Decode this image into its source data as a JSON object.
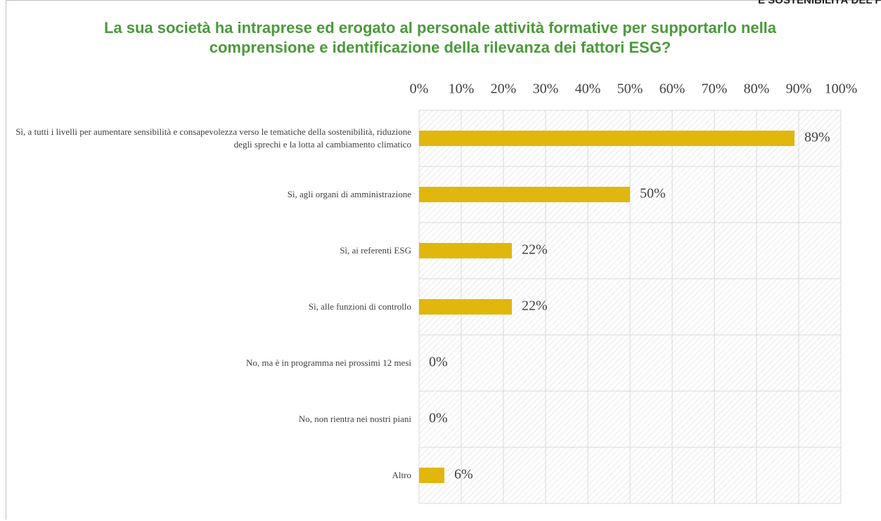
{
  "header": "E SOSTENIBILITÀ DEL FACTORING",
  "chart_data": {
    "type": "barh",
    "title": "La sua società ha intraprese ed erogato al personale attività formative per supportarlo nella comprensione e identificazione della rilevanza dei fattori ESG?",
    "categories": [
      "Sì, a tutti i livelli per aumentare sensibilità e consapevolezza verso le tematiche della sostenibilità, riduzione degli sprechi e la lotta al cambiamento climatico",
      "Sì, agli organi di amministrazione",
      "Sì, ai referenti ESG",
      "Sì, alle funzioni di controllo",
      "No, ma è in programma nei prossimi 12 mesi",
      "No, non rientra nei nostri piani",
      "Altro"
    ],
    "values": [
      89,
      50,
      22,
      22,
      0,
      0,
      6
    ],
    "value_labels": [
      "89%",
      "50%",
      "22%",
      "22%",
      "0%",
      "0%",
      "6%"
    ],
    "color": "#e1b70d",
    "xlim": [
      0,
      100
    ],
    "xticks": [
      {
        "value": 0,
        "label": "0%"
      },
      {
        "value": 10,
        "label": "10%"
      },
      {
        "value": 20,
        "label": "20%"
      },
      {
        "value": 30,
        "label": "30%"
      },
      {
        "value": 40,
        "label": "40%"
      },
      {
        "value": 50,
        "label": "50%"
      },
      {
        "value": 60,
        "label": "60%"
      },
      {
        "value": 70,
        "label": "70%"
      },
      {
        "value": 80,
        "label": "80%"
      },
      {
        "value": 90,
        "label": "90%"
      },
      {
        "value": 100,
        "label": "100%"
      }
    ],
    "grid": true
  }
}
